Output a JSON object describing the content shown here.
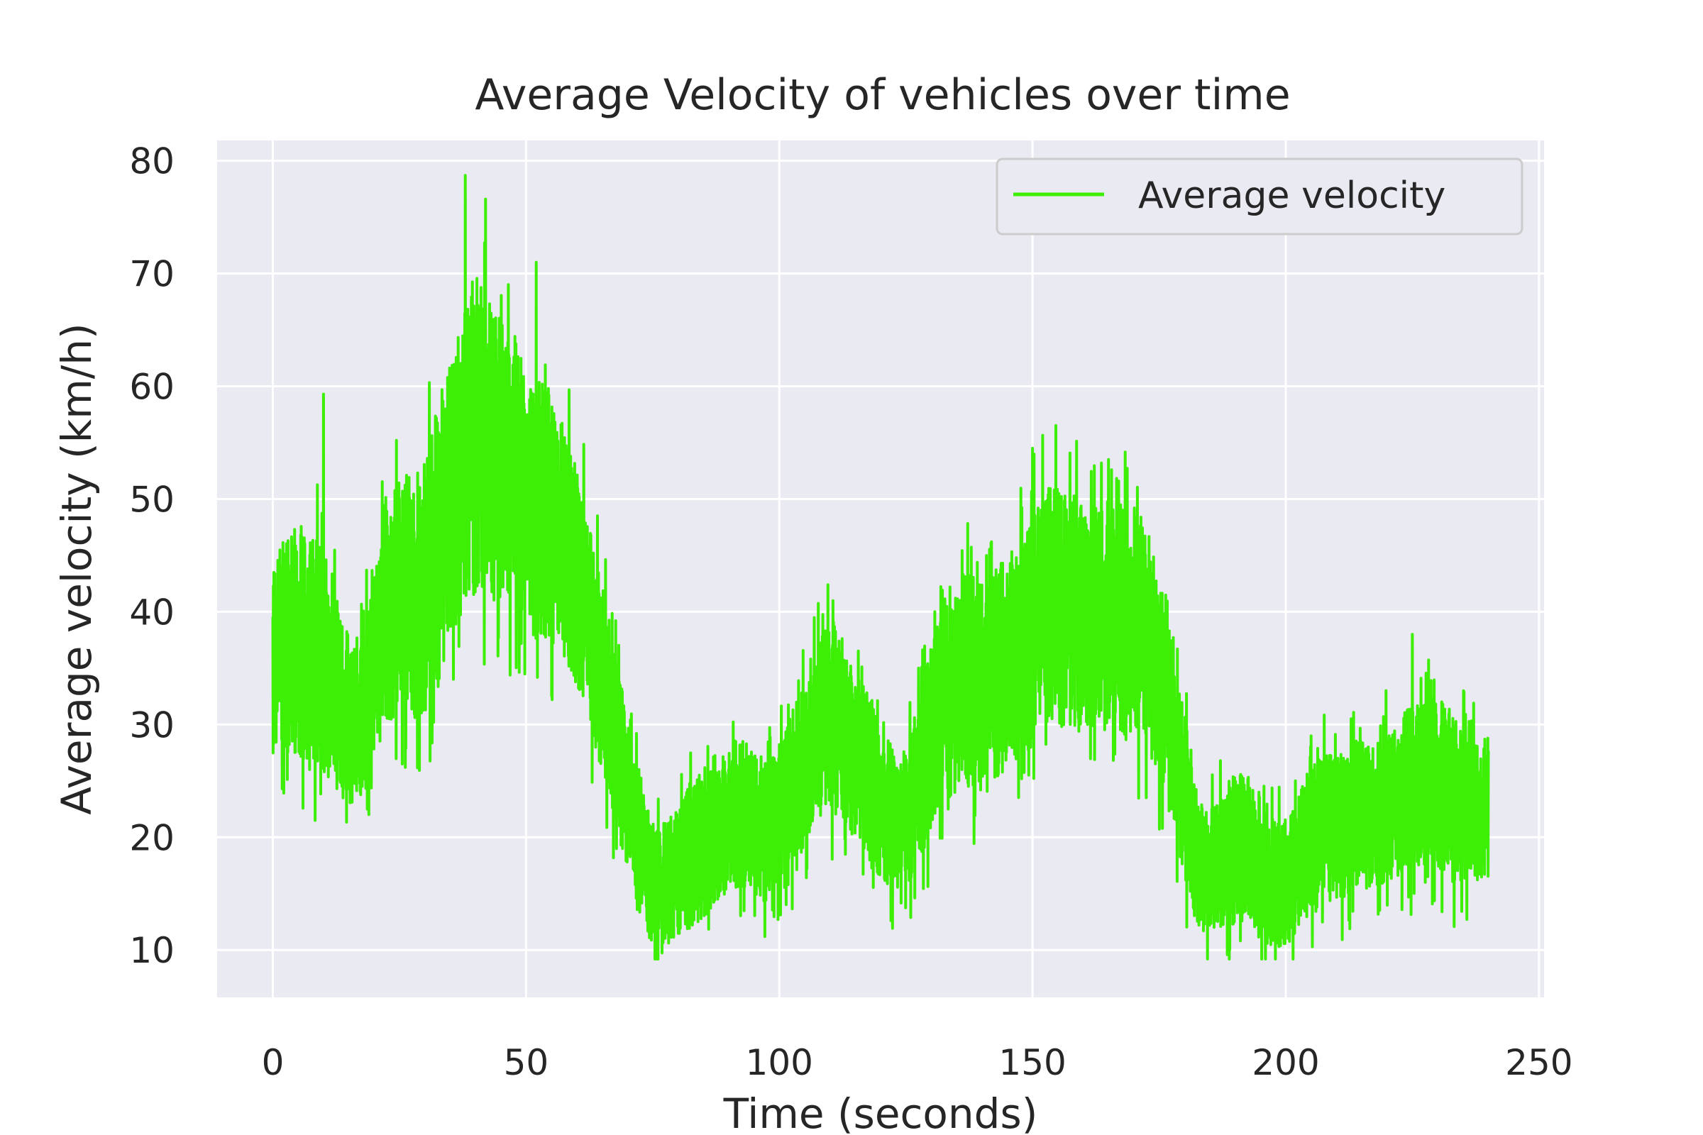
{
  "chart_data": {
    "type": "line",
    "title": "Average Velocity of vehicles over time",
    "xlabel": "Time (seconds)",
    "ylabel": "Average velocity (km/h)",
    "xlim": [
      -11,
      251
    ],
    "ylim": [
      5.8,
      81.8
    ],
    "xticks": [
      0,
      50,
      100,
      150,
      200,
      250
    ],
    "yticks": [
      10,
      20,
      30,
      40,
      50,
      60,
      70,
      80
    ],
    "grid": true,
    "legend_position": "top-right",
    "colors": {
      "background": "#eaeaf2",
      "grid": "#ffffff",
      "line": "#3cef04",
      "legend_bg": "#eaeaf2",
      "legend_edge": "#cccccc"
    },
    "series": [
      {
        "name": "Average velocity",
        "x": [
          0,
          2,
          4,
          6,
          8,
          10,
          12,
          14,
          16,
          18,
          20,
          22,
          24,
          26,
          28,
          30,
          32,
          34,
          36,
          38,
          40,
          42,
          44,
          46,
          48,
          50,
          52,
          54,
          56,
          58,
          60,
          62,
          64,
          66,
          68,
          70,
          72,
          74,
          76,
          78,
          80,
          82,
          84,
          86,
          88,
          90,
          92,
          94,
          96,
          98,
          100,
          102,
          104,
          106,
          108,
          110,
          112,
          114,
          116,
          118,
          120,
          122,
          124,
          126,
          128,
          130,
          132,
          134,
          136,
          138,
          140,
          142,
          144,
          146,
          148,
          150,
          152,
          154,
          156,
          158,
          160,
          162,
          164,
          166,
          168,
          170,
          172,
          174,
          176,
          178,
          180,
          182,
          184,
          186,
          188,
          190,
          192,
          194,
          196,
          198,
          200,
          202,
          204,
          206,
          208,
          210,
          212,
          214,
          216,
          218,
          220,
          222,
          224,
          226,
          228,
          230,
          232,
          234,
          236,
          238,
          240
        ],
        "mean": [
          36,
          37,
          38,
          37,
          36,
          36,
          34,
          31,
          30,
          31,
          35,
          39,
          41,
          42,
          41,
          42,
          45,
          48,
          51,
          54,
          56,
          55,
          54,
          53,
          52,
          50,
          49,
          49,
          47,
          46,
          43,
          40,
          36,
          32,
          28,
          24,
          20,
          17,
          15,
          16,
          17,
          18,
          19,
          20,
          21,
          22,
          22,
          22,
          21,
          21,
          22,
          23,
          25,
          28,
          30,
          31,
          30,
          28,
          27,
          25,
          23,
          22,
          21,
          23,
          26,
          29,
          32,
          33,
          34,
          34,
          33,
          34,
          35,
          36,
          37,
          38,
          40,
          41,
          40,
          40,
          39,
          39,
          39,
          40,
          39,
          39,
          38,
          36,
          33,
          29,
          24,
          19,
          17,
          17,
          18,
          19,
          19,
          18,
          17,
          16,
          16,
          17,
          19,
          20,
          21,
          21,
          21,
          22,
          22,
          22,
          23,
          23,
          24,
          25,
          25,
          25,
          24,
          23,
          22,
          22,
          23
        ],
        "spread": [
          9,
          10,
          11,
          11,
          11,
          11,
          10,
          8,
          8,
          8,
          9,
          10,
          11,
          11,
          12,
          12,
          13,
          14,
          14,
          15,
          15,
          14,
          14,
          13,
          13,
          12,
          12,
          12,
          11,
          11,
          10,
          10,
          9,
          9,
          8,
          7,
          7,
          6,
          6,
          6,
          6,
          7,
          7,
          7,
          7,
          7,
          7,
          7,
          7,
          7,
          7,
          8,
          8,
          8,
          9,
          9,
          9,
          8,
          8,
          8,
          7,
          7,
          6,
          7,
          8,
          9,
          9,
          10,
          10,
          10,
          10,
          10,
          10,
          10,
          10,
          11,
          11,
          11,
          11,
          11,
          11,
          11,
          11,
          11,
          11,
          11,
          11,
          10,
          10,
          9,
          8,
          7,
          6,
          6,
          7,
          7,
          7,
          7,
          7,
          6,
          6,
          6,
          7,
          7,
          7,
          7,
          7,
          7,
          7,
          7,
          7,
          7,
          8,
          8,
          8,
          8,
          8,
          8,
          7,
          7,
          7
        ],
        "peaks": [
          [
            10,
            59.3
          ],
          [
            38,
            78.7
          ],
          [
            42,
            76.6
          ],
          [
            52,
            71
          ],
          [
            150,
            54.5
          ],
          [
            165,
            53.5
          ],
          [
            196,
            9.2
          ],
          [
            76,
            10.3
          ],
          [
            225,
            38
          ]
        ]
      }
    ]
  }
}
